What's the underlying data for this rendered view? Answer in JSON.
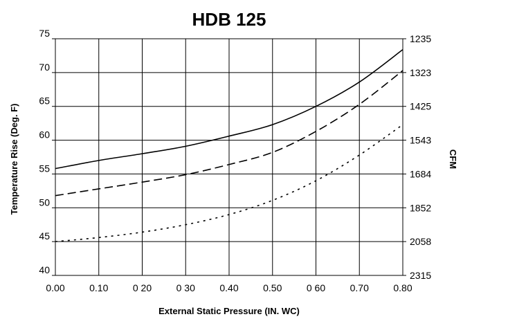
{
  "chart_data": {
    "type": "line",
    "title": "HDB 125",
    "xlabel": "External Static Pressure (IN. WC)",
    "ylabel": "Temperature Rise (Deg. F)",
    "y2label": "CFM",
    "xlim": [
      0,
      0.8
    ],
    "ylim": [
      40,
      75
    ],
    "x_ticks": [
      "0.00",
      "0.10",
      "0 20",
      "0 30",
      "0.40",
      "0.50",
      "0 60",
      "0.70",
      "0.80"
    ],
    "y_ticks": [
      "40",
      "45",
      "50",
      "55",
      "60",
      "65",
      "70",
      "75"
    ],
    "y2_ticks": [
      "2315",
      "2058",
      "1852",
      "1684",
      "1543",
      "1425",
      "1323",
      "1235"
    ],
    "grid": true,
    "x": [
      0.0,
      0.1,
      0.2,
      0.3,
      0.4,
      0.5,
      0.6,
      0.7,
      0.8
    ],
    "series": [
      {
        "style": "solid",
        "values": [
          55.8,
          57.0,
          58.0,
          59.1,
          60.6,
          62.3,
          65.0,
          68.6,
          73.4
        ]
      },
      {
        "style": "dashed",
        "values": [
          51.8,
          52.8,
          53.8,
          54.9,
          56.4,
          58.2,
          61.3,
          65.3,
          70.3
        ]
      },
      {
        "style": "dotted",
        "values": [
          45.0,
          45.6,
          46.4,
          47.5,
          49.0,
          51.1,
          54.0,
          57.8,
          62.3
        ]
      }
    ]
  }
}
